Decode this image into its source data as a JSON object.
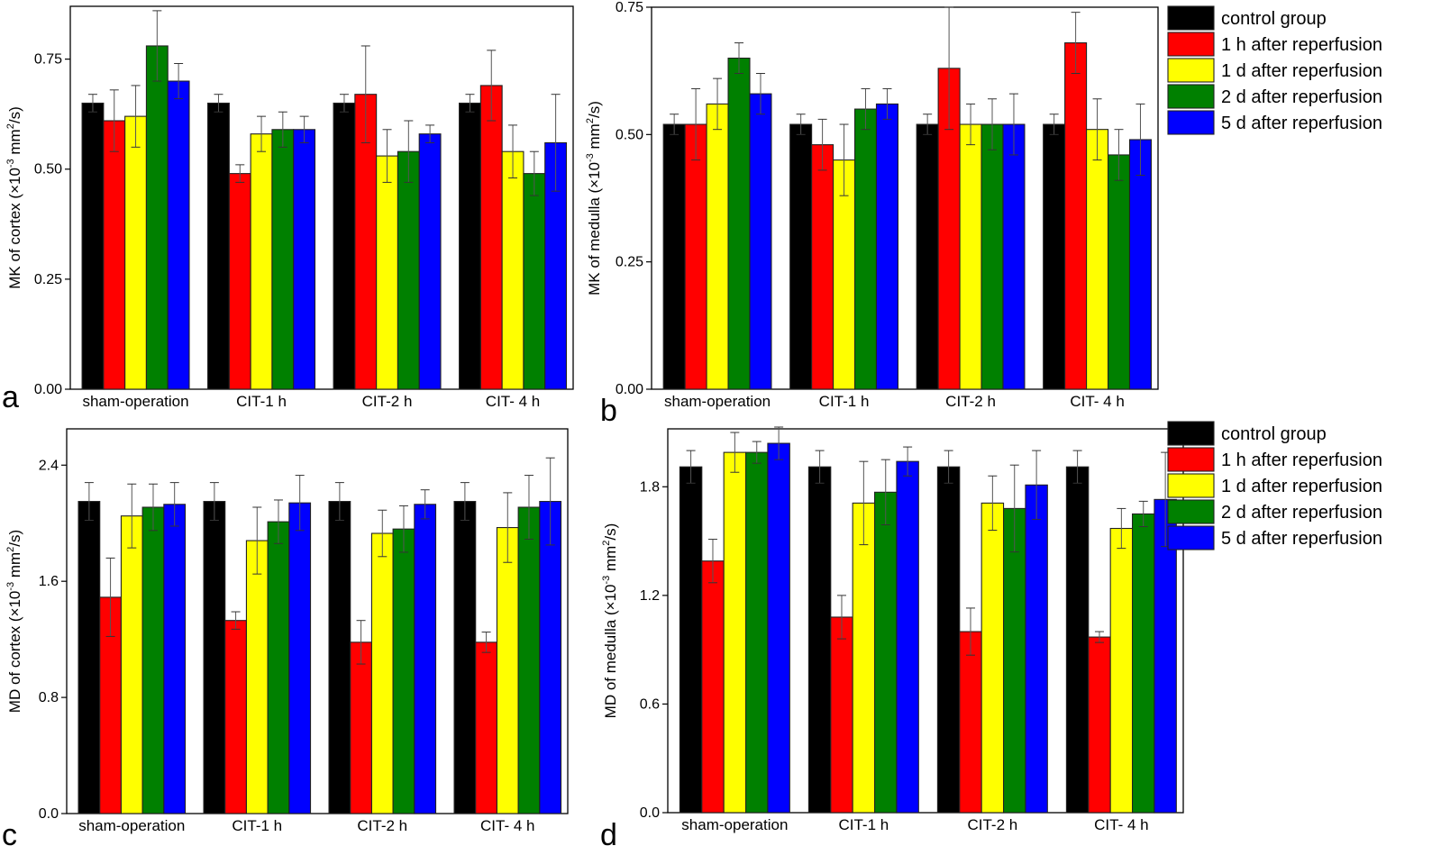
{
  "chart_data": [
    {
      "type": "bar",
      "panel_letter": "a",
      "ylabel": "MK of cortex (×10⁻³ mm²/s)",
      "ylabel_parts": {
        "pre": "MK of cortex (×10",
        "exp1": "-3",
        "mid": " mm",
        "exp2": "2",
        "post": "/s)"
      },
      "ylim": [
        0,
        0.87
      ],
      "yticks": [
        0.0,
        0.25,
        0.5,
        0.75
      ],
      "ytick_labels": [
        "0.00",
        "0.25",
        "0.50",
        "0.75"
      ],
      "categories": [
        "sham-operation",
        "CIT-1 h",
        "CIT-2 h",
        "CIT- 4 h"
      ],
      "series": [
        {
          "name": "control group",
          "values": [
            0.65,
            0.65,
            0.65,
            0.65
          ],
          "errors": [
            0.02,
            0.02,
            0.02,
            0.02
          ]
        },
        {
          "name": "1 h after reperfusion",
          "values": [
            0.61,
            0.49,
            0.67,
            0.69
          ],
          "errors": [
            0.07,
            0.02,
            0.11,
            0.08
          ]
        },
        {
          "name": "1 d after reperfusion",
          "values": [
            0.62,
            0.58,
            0.53,
            0.54
          ],
          "errors": [
            0.07,
            0.04,
            0.06,
            0.06
          ]
        },
        {
          "name": "2 d after reperfusion",
          "values": [
            0.78,
            0.59,
            0.54,
            0.49
          ],
          "errors": [
            0.08,
            0.04,
            0.07,
            0.05
          ]
        },
        {
          "name": "5 d after reperfusion",
          "values": [
            0.7,
            0.59,
            0.58,
            0.56
          ],
          "errors": [
            0.04,
            0.03,
            0.02,
            0.11
          ]
        }
      ],
      "legend": false
    },
    {
      "type": "bar",
      "panel_letter": "b",
      "ylabel": "MK of medulla (×10⁻³ mm²/s)",
      "ylabel_parts": {
        "pre": "MK of medulla (×10",
        "exp1": "-3",
        "mid": " mm",
        "exp2": "2",
        "post": "/s)"
      },
      "ylim": [
        0,
        0.75
      ],
      "yticks": [
        0.0,
        0.25,
        0.5,
        0.75
      ],
      "ytick_labels": [
        "0.00",
        "0.25",
        "0.50",
        "0.75"
      ],
      "categories": [
        "sham-operation",
        "CIT-1 h",
        "CIT-2 h",
        "CIT- 4 h"
      ],
      "series": [
        {
          "name": "control group",
          "values": [
            0.52,
            0.52,
            0.52,
            0.52
          ],
          "errors": [
            0.02,
            0.02,
            0.02,
            0.02
          ]
        },
        {
          "name": "1 h after reperfusion",
          "values": [
            0.52,
            0.48,
            0.63,
            0.68
          ],
          "errors": [
            0.07,
            0.05,
            0.12,
            0.06
          ]
        },
        {
          "name": "1 d after reperfusion",
          "values": [
            0.56,
            0.45,
            0.52,
            0.51
          ],
          "errors": [
            0.05,
            0.07,
            0.04,
            0.06
          ]
        },
        {
          "name": "2 d after reperfusion",
          "values": [
            0.65,
            0.55,
            0.52,
            0.46
          ],
          "errors": [
            0.03,
            0.04,
            0.05,
            0.05
          ]
        },
        {
          "name": "5 d after reperfusion",
          "values": [
            0.58,
            0.56,
            0.52,
            0.49
          ],
          "errors": [
            0.04,
            0.03,
            0.06,
            0.07
          ]
        }
      ],
      "legend": true,
      "legend_position": "right"
    },
    {
      "type": "bar",
      "panel_letter": "c",
      "ylabel": "MD of cortex (×10⁻³ mm²/s)",
      "ylabel_parts": {
        "pre": "MD of cortex (×10",
        "exp1": "-3",
        "mid": " mm",
        "exp2": "2",
        "post": "/s)"
      },
      "ylim": [
        0,
        2.65
      ],
      "yticks": [
        0.0,
        0.8,
        1.6,
        2.4
      ],
      "ytick_labels": [
        "0.0",
        "0.8",
        "1.6",
        "2.4"
      ],
      "categories": [
        "sham-operation",
        "CIT-1 h",
        "CIT-2 h",
        "CIT- 4 h"
      ],
      "series": [
        {
          "name": "control group",
          "values": [
            2.15,
            2.15,
            2.15,
            2.15
          ],
          "errors": [
            0.13,
            0.13,
            0.13,
            0.13
          ]
        },
        {
          "name": "1 h after reperfusion",
          "values": [
            1.49,
            1.33,
            1.18,
            1.18
          ],
          "errors": [
            0.27,
            0.06,
            0.15,
            0.07
          ]
        },
        {
          "name": "1 d after reperfusion",
          "values": [
            2.05,
            1.88,
            1.93,
            1.97
          ],
          "errors": [
            0.22,
            0.23,
            0.16,
            0.24
          ]
        },
        {
          "name": "2 d after reperfusion",
          "values": [
            2.11,
            2.01,
            1.96,
            2.11
          ],
          "errors": [
            0.16,
            0.15,
            0.16,
            0.22
          ]
        },
        {
          "name": "5 d after reperfusion",
          "values": [
            2.13,
            2.14,
            2.13,
            2.15
          ],
          "errors": [
            0.15,
            0.19,
            0.1,
            0.3
          ]
        }
      ],
      "legend": false
    },
    {
      "type": "bar",
      "panel_letter": "d",
      "ylabel": "MD of medulla (×10⁻³ mm²/s)",
      "ylabel_parts": {
        "pre": "MD of medulla (×10",
        "exp1": "-3",
        "mid": " mm",
        "exp2": "2",
        "post": "/s)"
      },
      "ylim": [
        0,
        2.12
      ],
      "yticks": [
        0.0,
        0.6,
        1.2,
        1.8
      ],
      "ytick_labels": [
        "0.0",
        "0.6",
        "1.2",
        "1.8"
      ],
      "categories": [
        "sham-operation",
        "CIT-1 h",
        "CIT-2 h",
        "CIT- 4 h"
      ],
      "series": [
        {
          "name": "control group",
          "values": [
            1.91,
            1.91,
            1.91,
            1.91
          ],
          "errors": [
            0.09,
            0.09,
            0.09,
            0.09
          ]
        },
        {
          "name": "1 h after reperfusion",
          "values": [
            1.39,
            1.08,
            1.0,
            0.97
          ],
          "errors": [
            0.12,
            0.12,
            0.13,
            0.03
          ]
        },
        {
          "name": "1 d after reperfusion",
          "values": [
            1.99,
            1.71,
            1.71,
            1.57
          ],
          "errors": [
            0.11,
            0.23,
            0.15,
            0.11
          ]
        },
        {
          "name": "2 d after reperfusion",
          "values": [
            1.99,
            1.77,
            1.68,
            1.65
          ],
          "errors": [
            0.06,
            0.18,
            0.24,
            0.07
          ]
        },
        {
          "name": "5 d after reperfusion",
          "values": [
            2.04,
            1.94,
            1.81,
            1.73
          ],
          "errors": [
            0.09,
            0.08,
            0.19,
            0.26
          ]
        }
      ],
      "legend": true,
      "legend_position": "right"
    }
  ],
  "series_colors": [
    "#000000",
    "#ff0000",
    "#ffff00",
    "#008000",
    "#0000ff"
  ],
  "legend_labels": [
    "control group",
    "1 h after reperfusion",
    "1 d after reperfusion",
    "2 d after reperfusion",
    "5 d after reperfusion"
  ]
}
